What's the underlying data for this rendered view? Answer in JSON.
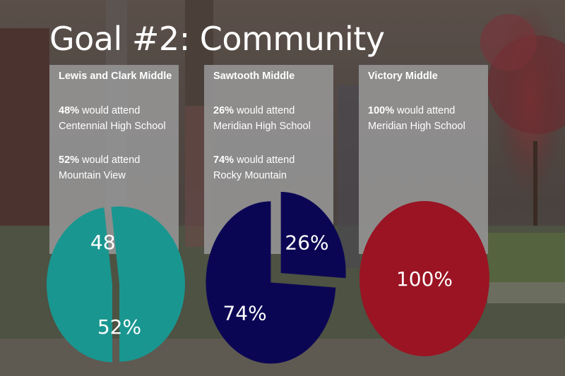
{
  "slide": {
    "title": "Goal #2: Community",
    "colors": {
      "teal": "#1a9690",
      "navy": "#0b0654",
      "crimson": "#9a1423",
      "card": "#969696"
    }
  },
  "chart_data": [
    {
      "type": "pie",
      "title": "Lewis and Clark Middle",
      "stats": [
        {
          "pct": "48%",
          "text": "would attend",
          "school": "Centennial High School"
        },
        {
          "pct": "52%",
          "text": "would attend",
          "school": "Mountain View"
        }
      ],
      "slices": [
        {
          "value": 48,
          "label": "48%",
          "color": "#1a9690"
        },
        {
          "value": 52,
          "label": "52%",
          "color": "#1a9690"
        }
      ]
    },
    {
      "type": "pie",
      "title": "Sawtooth Middle",
      "stats": [
        {
          "pct": "26%",
          "text": "would attend",
          "school": "Meridian High School"
        },
        {
          "pct": "74%",
          "text": "would attend",
          "school": "Rocky Mountain"
        }
      ],
      "slices": [
        {
          "value": 26,
          "label": "26%",
          "color": "#0b0654"
        },
        {
          "value": 74,
          "label": "74%",
          "color": "#0b0654"
        }
      ]
    },
    {
      "type": "pie",
      "title": "Victory Middle",
      "stats": [
        {
          "pct": "100%",
          "text": "would attend",
          "school": "Meridian High School"
        }
      ],
      "slices": [
        {
          "value": 100,
          "label": "100%",
          "color": "#9a1423"
        }
      ]
    }
  ]
}
